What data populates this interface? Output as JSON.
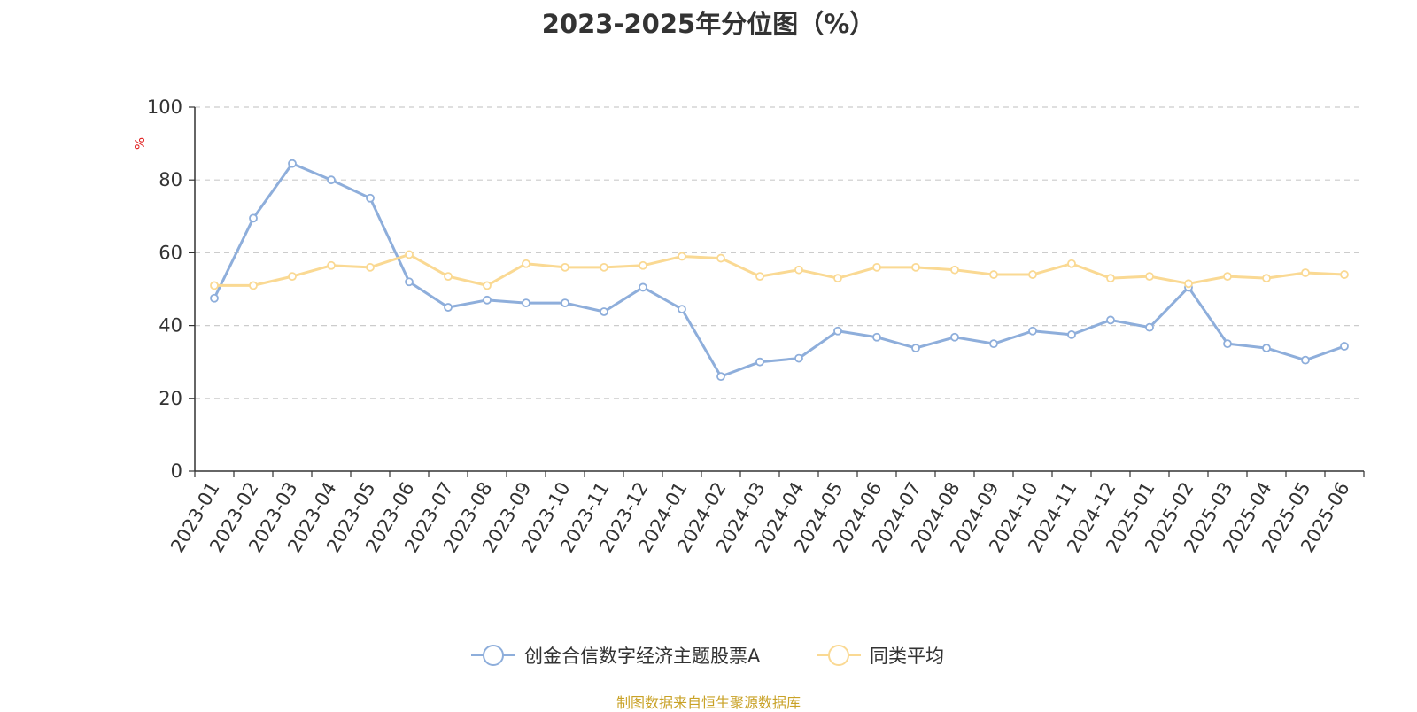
{
  "chart_data": {
    "type": "line",
    "title": "2023-2025年分位图（%）",
    "ylabel": "%",
    "ylim": [
      0,
      100
    ],
    "yticks": [
      0,
      20,
      40,
      60,
      80,
      100
    ],
    "grid": true,
    "legend_position": "bottom-center",
    "categories": [
      "2023-01",
      "2023-02",
      "2023-03",
      "2023-04",
      "2023-05",
      "2023-06",
      "2023-07",
      "2023-08",
      "2023-09",
      "2023-10",
      "2023-11",
      "2023-12",
      "2024-01",
      "2024-02",
      "2024-03",
      "2024-04",
      "2024-05",
      "2024-06",
      "2024-07",
      "2024-08",
      "2024-09",
      "2024-10",
      "2024-11",
      "2024-12",
      "2025-01",
      "2025-02",
      "2025-03",
      "2025-04",
      "2025-05",
      "2025-06"
    ],
    "series": [
      {
        "name": "创金合信数字经济主题股票A",
        "color": "#8eaedb",
        "values": [
          47.5,
          69.5,
          84.5,
          80,
          75,
          52,
          45,
          47,
          46.2,
          46.2,
          43.8,
          50.5,
          44.5,
          26,
          30,
          31,
          38.5,
          36.8,
          33.8,
          36.8,
          35,
          38.5,
          37.5,
          41.5,
          39.5,
          50.5,
          35,
          33.8,
          30.5,
          34.3
        ]
      },
      {
        "name": "同类平均",
        "color": "#fad993",
        "values": [
          51,
          51,
          53.5,
          56.5,
          56,
          59.5,
          53.5,
          51,
          57,
          56,
          56,
          56.5,
          59,
          58.5,
          53.5,
          55.3,
          53,
          56,
          56,
          55.3,
          54,
          54,
          57,
          53,
          53.5,
          51.5,
          53.5,
          53,
          54.5,
          54
        ]
      }
    ],
    "ylabel_color": "#e02020"
  },
  "source": {
    "text": "制图数据来自恒生聚源数据库",
    "color": "#c9a227"
  }
}
